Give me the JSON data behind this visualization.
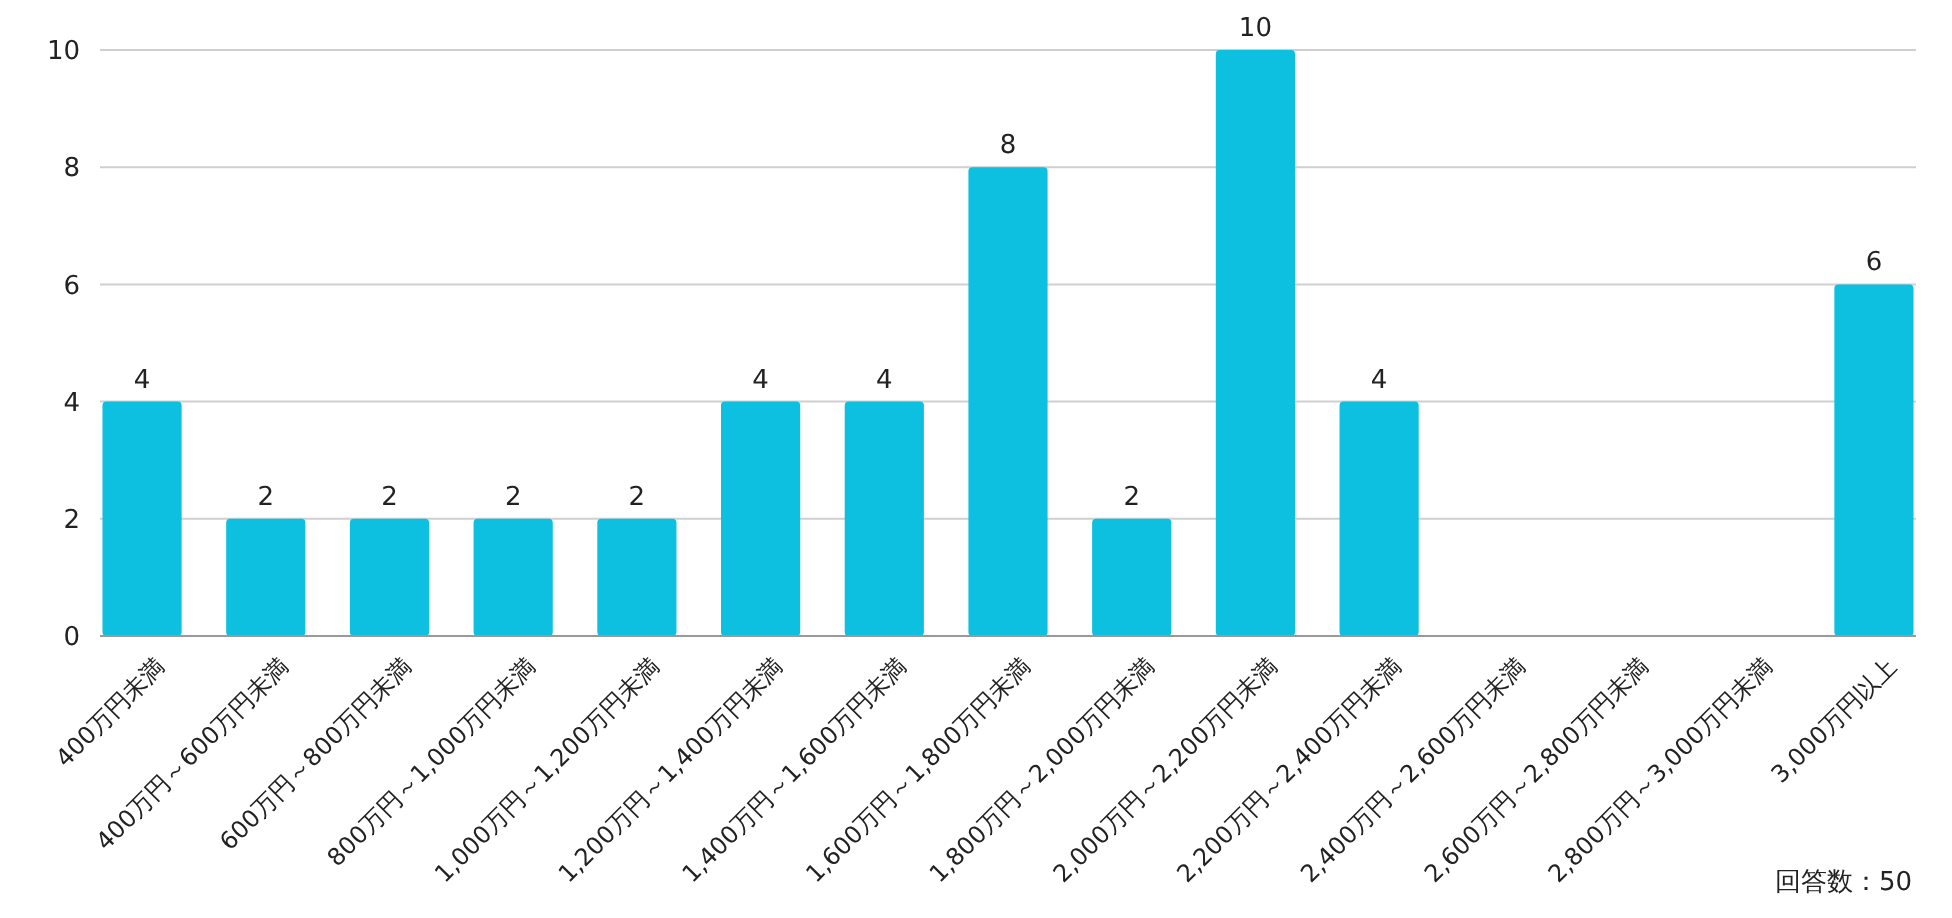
{
  "chart_data": {
    "type": "bar",
    "categories": [
      "400万円未満",
      "400万円～600万円未満",
      "600万円～800万円未満",
      "800万円～1,000万円未満",
      "1,000万円～1,200万円未満",
      "1,200万円～1,400万円未満",
      "1,400万円～1,600万円未満",
      "1,600万円～1,800万円未満",
      "1,800万円～2,000万円未満",
      "2,000万円～2,200万円未満",
      "2,200万円～2,400万円未満",
      "2,400万円～2,600万円未満",
      "2,600万円～2,800万円未満",
      "2,800万円～3,000万円未満",
      "3,000万円以上"
    ],
    "values": [
      4,
      2,
      2,
      2,
      2,
      4,
      4,
      8,
      2,
      10,
      4,
      0,
      0,
      0,
      6
    ],
    "value_labels": [
      "4",
      "2",
      "2",
      "2",
      "2",
      "4",
      "4",
      "8",
      "2",
      "10",
      "4",
      null,
      null,
      null,
      "6"
    ],
    "color": "#0dc0df",
    "ylim": [
      0,
      10
    ],
    "yticks": [
      0,
      2,
      4,
      6,
      8,
      10
    ],
    "grid": "y",
    "annotations": [
      "回答数：50"
    ]
  }
}
